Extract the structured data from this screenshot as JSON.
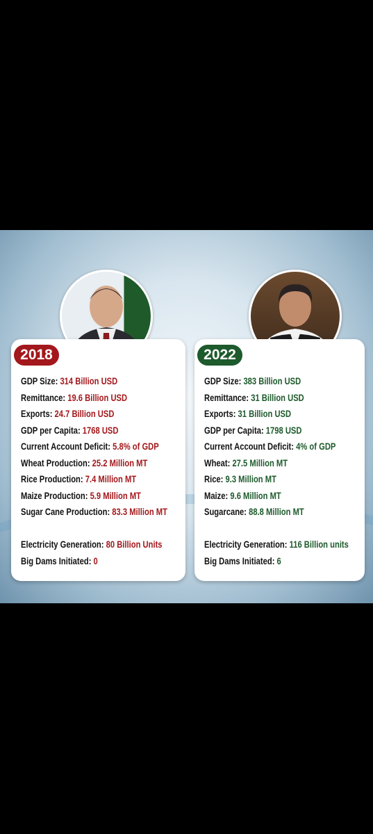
{
  "cards": [
    {
      "year": "2018",
      "groups": [
        [
          {
            "label": "GDP Size:",
            "value": "314 Billion USD"
          },
          {
            "label": "Remittance:",
            "value": "19.6 Billion USD"
          },
          {
            "label": "Exports:",
            "value": "24.7 Billion USD"
          },
          {
            "label": "GDP per Capita:",
            "value": "1768 USD"
          },
          {
            "label": "Current Account Deficit:",
            "value": "5.8% of GDP"
          },
          {
            "label": "Wheat Production:",
            "value": "25.2 Million MT"
          },
          {
            "label": "Rice Production:",
            "value": "7.4 Million MT"
          },
          {
            "label": "Maize Production:",
            "value": "5.9 Million MT"
          },
          {
            "label": "Sugar Cane Production:",
            "value": "83.3 Million MT"
          }
        ],
        [
          {
            "label": "Electricity Generation:",
            "value": "80 Billion Units"
          },
          {
            "label": "Big Dams Initiated:",
            "value": "0"
          }
        ]
      ]
    },
    {
      "year": "2022",
      "groups": [
        [
          {
            "label": "GDP Size:",
            "value": "383 Billion USD"
          },
          {
            "label": "Remittance:",
            "value": "31 Billion USD"
          },
          {
            "label": "Exports:",
            "value": "31 Billion USD"
          },
          {
            "label": "GDP per Capita:",
            "value": "1798 USD"
          },
          {
            "label": "Current Account Deficit:",
            "value": "4% of GDP"
          },
          {
            "label": "Wheat:",
            "value": "27.5 Million MT"
          },
          {
            "label": "Rice:",
            "value": "9.3 Million MT"
          },
          {
            "label": "Maize:",
            "value": "9.6 Million MT"
          },
          {
            "label": "Sugarcane:",
            "value": "88.8 Million MT"
          }
        ],
        [
          {
            "label": "Electricity Generation:",
            "value": "116 Billion units"
          },
          {
            "label": "Big Dams Initiated:",
            "value": "6"
          }
        ]
      ]
    }
  ]
}
